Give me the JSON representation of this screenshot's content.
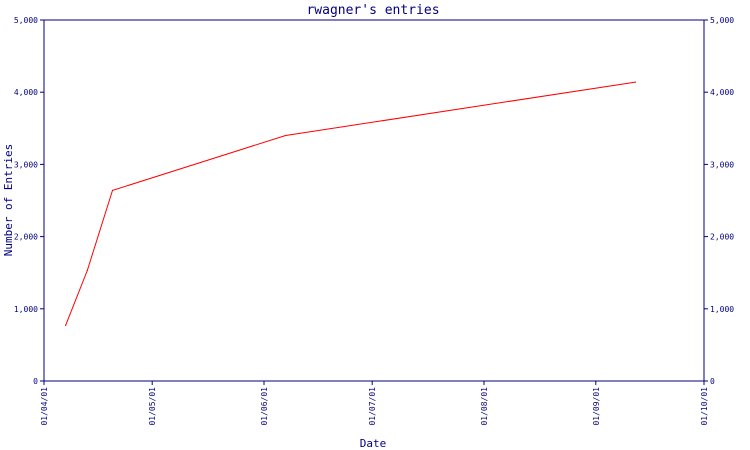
{
  "chart_data": {
    "type": "line",
    "title": "rwagner's entries",
    "xlabel": "Date",
    "ylabel": "Number of Entries",
    "x_ticks": [
      "01/04/01",
      "01/05/01",
      "01/06/01",
      "01/07/01",
      "01/08/01",
      "01/09/01",
      "01/10/01"
    ],
    "y_ticks": [
      "0",
      "1,000",
      "2,000",
      "3,000",
      "4,000",
      "5,000"
    ],
    "ylim": [
      0,
      5000
    ],
    "xlim": [
      "2001-04-01",
      "2001-10-01"
    ],
    "grid": false,
    "series": [
      {
        "name": "",
        "color": "#ff0000",
        "points": [
          {
            "x": "2001-04-07",
            "y": 770
          },
          {
            "x": "2001-04-13",
            "y": 1530
          },
          {
            "x": "2001-04-20",
            "y": 2640
          },
          {
            "x": "2001-06-07",
            "y": 3400
          },
          {
            "x": "2001-09-12",
            "y": 4140
          }
        ]
      }
    ],
    "axis_color": "#000080"
  }
}
